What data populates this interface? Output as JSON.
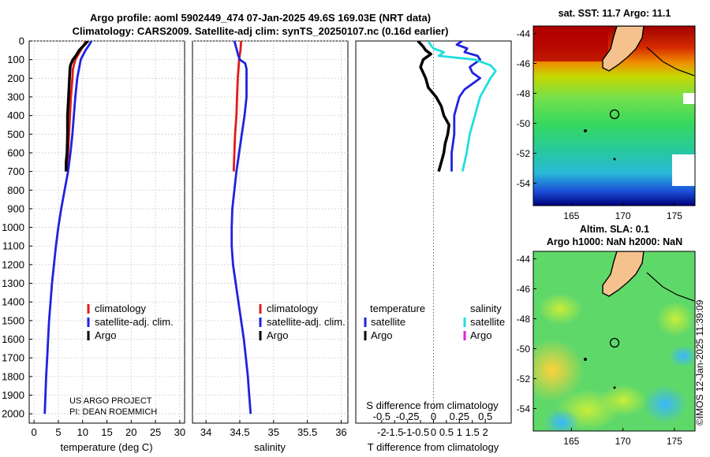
{
  "titles": {
    "line1": "Argo profile: aoml 5902449_474 07-Jan-2025 49.6S 169.03E (NRT data)",
    "line2": "Climatology: CARS2009. Satellite-adj clim: synTS_20250107.nc (0.16d earlier)"
  },
  "maps": {
    "sst_title": "sat. SST: 11.7 Argo: 11.1",
    "sla_title1": "Altim. SLA: 0.1",
    "sla_title2": "Argo h1000: NaN h2000: NaN",
    "credit": "©IMOS 12-Jan-2025 11:39:09",
    "lat_ticks": [
      "-44",
      "-46",
      "-48",
      "-50",
      "-52",
      "-54"
    ],
    "lon_ticks": [
      "165",
      "170",
      "175"
    ],
    "float_position": {
      "lon": 169.03,
      "lat": -49.6
    }
  },
  "colors": {
    "climatology": "#e31a1c",
    "satellite": "#1f22e0",
    "argo": "#000000",
    "sat_cyan": "#22dddd",
    "argo_magenta": "#dd22dd"
  },
  "chart_data": [
    {
      "type": "line",
      "name": "temperature",
      "xlabel": "temperature (deg C)",
      "ylabel": "",
      "xlim": [
        -1,
        31
      ],
      "ylim": [
        2050,
        0
      ],
      "xticks": [
        "0",
        "5",
        "10",
        "15",
        "20",
        "25",
        "30"
      ],
      "yticks": [
        "0",
        "100",
        "200",
        "300",
        "400",
        "500",
        "600",
        "700",
        "800",
        "900",
        "1000",
        "1100",
        "1200",
        "1300",
        "1400",
        "1500",
        "1600",
        "1700",
        "1800",
        "1900",
        "2000"
      ],
      "grid": true,
      "legend": [
        "climatology",
        "satellite-adj. clim.",
        "Argo"
      ],
      "notes": [
        "US ARGO PROJECT",
        "PI: DEAN ROEMMICH"
      ],
      "series": [
        {
          "name": "climatology",
          "depth": [
            0,
            20,
            50,
            100,
            150,
            200,
            300,
            400,
            500,
            600,
            700
          ],
          "values": [
            10.6,
            10.3,
            9.6,
            8.5,
            8.0,
            7.9,
            7.6,
            7.4,
            7.2,
            7.0,
            6.8
          ]
        },
        {
          "name": "satellite-adj. clim.",
          "depth": [
            0,
            20,
            50,
            100,
            200,
            300,
            400,
            500,
            600,
            700,
            800,
            900,
            1000,
            1100,
            1200,
            1300,
            1400,
            1500,
            1600,
            1700,
            1800,
            1900,
            2000
          ],
          "values": [
            11.8,
            11.4,
            10.6,
            9.6,
            8.9,
            8.5,
            8.2,
            7.9,
            7.5,
            7.0,
            6.3,
            5.6,
            5.0,
            4.5,
            4.1,
            3.7,
            3.4,
            3.1,
            2.9,
            2.7,
            2.5,
            2.35,
            2.2
          ]
        },
        {
          "name": "Argo",
          "depth": [
            0,
            20,
            50,
            80,
            100,
            130,
            150,
            200,
            300,
            400,
            500,
            600,
            650,
            700
          ],
          "values": [
            11.1,
            10.4,
            9.3,
            8.6,
            8.0,
            7.5,
            7.4,
            7.3,
            7.1,
            6.9,
            6.9,
            6.8,
            6.6,
            6.6
          ]
        }
      ]
    },
    {
      "type": "line",
      "name": "salinity",
      "xlabel": "salinity",
      "xlim": [
        33.8,
        36.1
      ],
      "ylim": [
        2050,
        0
      ],
      "xticks": [
        "34",
        "34.5",
        "35",
        "35.5",
        "36"
      ],
      "grid": true,
      "legend": [
        "climatology",
        "satellite-adj. clim.",
        "Argo"
      ],
      "series": [
        {
          "name": "climatology",
          "depth": [
            0,
            50,
            100,
            200,
            300,
            400,
            500,
            600,
            700
          ],
          "values": [
            34.52,
            34.51,
            34.49,
            34.47,
            34.46,
            34.45,
            34.43,
            34.42,
            34.41
          ]
        },
        {
          "name": "satellite-adj. clim.",
          "depth": [
            0,
            40,
            80,
            100,
            120,
            150,
            200,
            300,
            400,
            500,
            600,
            700,
            800,
            900,
            1000,
            1100,
            1200,
            1300,
            1400,
            1500,
            1600,
            1700,
            1800,
            1900,
            2000
          ],
          "values": [
            34.42,
            34.45,
            34.48,
            34.5,
            34.58,
            34.6,
            34.6,
            34.6,
            34.57,
            34.53,
            34.49,
            34.45,
            34.42,
            34.39,
            34.38,
            34.38,
            34.4,
            34.44,
            34.48,
            34.52,
            34.56,
            34.59,
            34.62,
            34.64,
            34.66
          ]
        }
      ]
    },
    {
      "type": "line",
      "name": "difference",
      "xlabel": "T difference from climatology",
      "xlabel2": "S difference from climatology",
      "xlim": [
        -3,
        3
      ],
      "ylim": [
        2050,
        0
      ],
      "xticks": [
        "-2",
        "-1.5",
        "-1",
        "-0.5",
        "0",
        "0.5",
        "1",
        "1.5",
        "2"
      ],
      "xticks_s": [
        "-0.5",
        "-0.25",
        "0",
        "0.25",
        "0.5"
      ],
      "grid": false,
      "legend_titles": [
        "temperature",
        "salinity"
      ],
      "legend_t": [
        "satellite",
        "Argo"
      ],
      "legend_s": [
        "satellite",
        "Argo"
      ],
      "series": [
        {
          "name": "T satellite",
          "depth": [
            0,
            20,
            40,
            60,
            80,
            100,
            120,
            140,
            170,
            200,
            230,
            260,
            300,
            350,
            400,
            500,
            600,
            700
          ],
          "values": [
            1.1,
            0.9,
            1.3,
            1.2,
            1.7,
            1.8,
            1.6,
            1.4,
            1.5,
            1.8,
            1.5,
            1.2,
            1.0,
            0.9,
            0.8,
            0.8,
            0.7,
            0.7
          ]
        },
        {
          "name": "S satellite",
          "depth": [
            0,
            20,
            40,
            60,
            80,
            100,
            130,
            160,
            200,
            250,
            300,
            400,
            500,
            600,
            700
          ],
          "values": [
            -0.05,
            -0.03,
            0.0,
            0.1,
            0.05,
            0.4,
            0.55,
            0.6,
            0.55,
            0.5,
            0.45,
            0.4,
            0.35,
            0.32,
            0.28
          ]
        },
        {
          "name": "T Argo",
          "depth": [
            0,
            30,
            50,
            70,
            100,
            140,
            200,
            250,
            300,
            350,
            400,
            450,
            500,
            550,
            600,
            650,
            700
          ],
          "values": [
            -0.6,
            -0.4,
            -0.3,
            -0.1,
            -0.4,
            -0.5,
            -0.3,
            -0.2,
            0.1,
            0.3,
            0.4,
            0.6,
            0.55,
            0.45,
            0.4,
            0.3,
            0.2
          ]
        }
      ]
    }
  ]
}
